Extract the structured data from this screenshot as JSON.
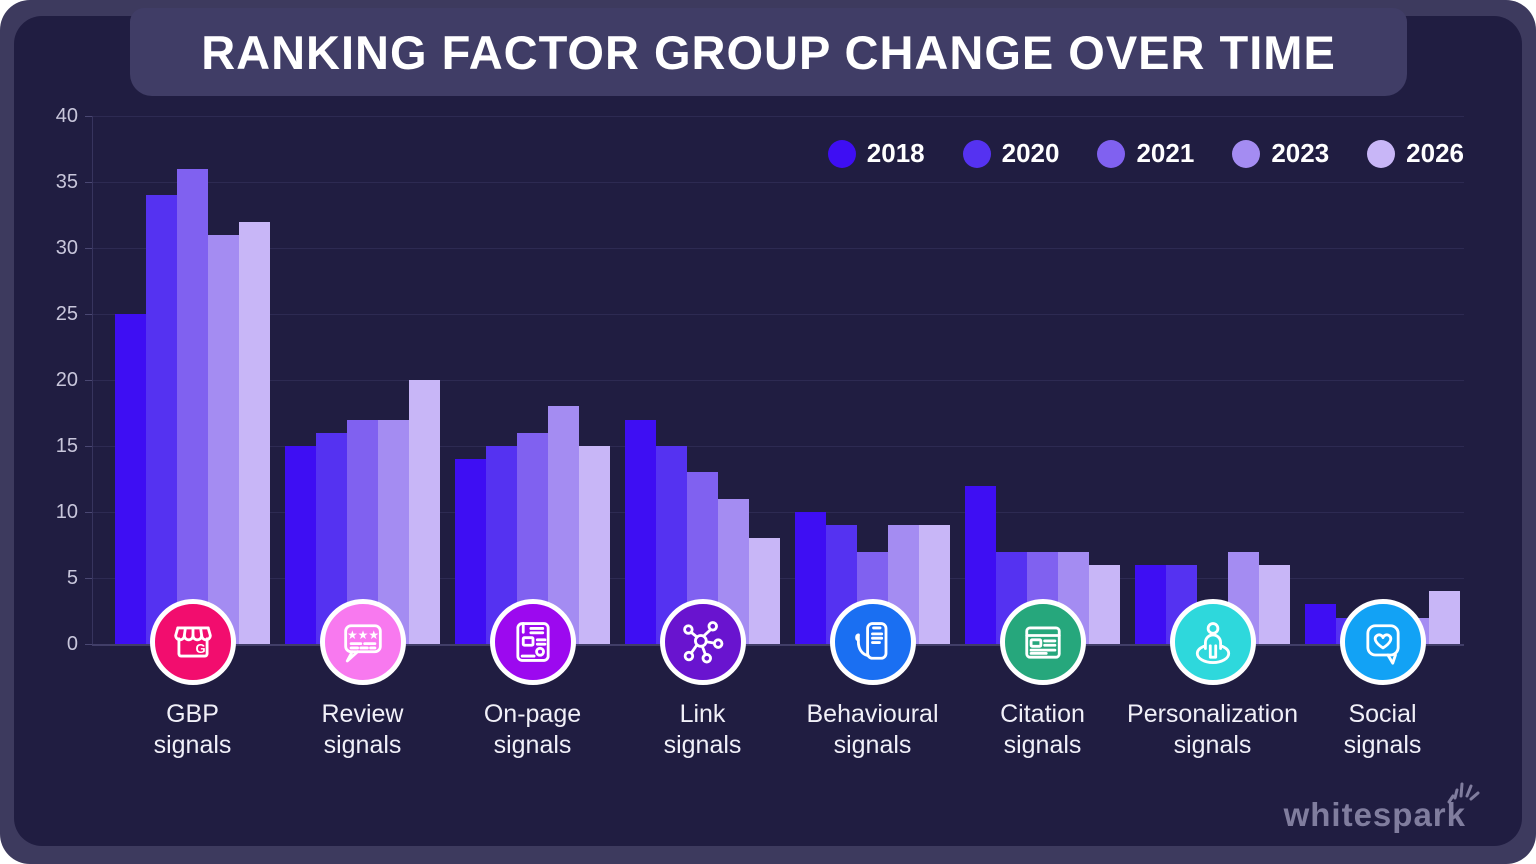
{
  "title": "RANKING FACTOR GROUP CHANGE OVER TIME",
  "brand": {
    "logo_text": "whitespark",
    "logo_color": "#807d9e",
    "spark_icon": "spark-burst-icon"
  },
  "colors": {
    "frame_rim": "#3d3a5e",
    "card_background": "#201d41",
    "banner_background": "#403d66",
    "gridline": "#2d2a52",
    "axis_label": "#c8c6db",
    "category_label": "#f1f0f8"
  },
  "chart_data": {
    "type": "bar",
    "title": "RANKING FACTOR GROUP CHANGE OVER TIME",
    "categories": [
      "GBP signals",
      "Review signals",
      "On-page signals",
      "Link signals",
      "Behavioural signals",
      "Citation signals",
      "Personalization signals",
      "Social signals"
    ],
    "category_lines": [
      [
        "GBP",
        "signals"
      ],
      [
        "Review",
        "signals"
      ],
      [
        "On-page",
        "signals"
      ],
      [
        "Link",
        "signals"
      ],
      [
        "Behavioural",
        "signals"
      ],
      [
        "Citation",
        "signals"
      ],
      [
        "Personalization",
        "signals"
      ],
      [
        "Social",
        "signals"
      ]
    ],
    "series": [
      {
        "name": "2018",
        "color": "#3e0ef3",
        "values": [
          25,
          15,
          14,
          17,
          10,
          12,
          6,
          3
        ]
      },
      {
        "name": "2020",
        "color": "#5532f1",
        "values": [
          34,
          16,
          15,
          15,
          9,
          7,
          6,
          2
        ]
      },
      {
        "name": "2021",
        "color": "#8061f0",
        "values": [
          36,
          17,
          16,
          13,
          7,
          7,
          3,
          2
        ]
      },
      {
        "name": "2023",
        "color": "#a48cf2",
        "values": [
          31,
          17,
          18,
          11,
          9,
          7,
          7,
          2
        ]
      },
      {
        "name": "2026",
        "color": "#c8b6f7",
        "values": [
          32,
          20,
          15,
          8,
          9,
          6,
          6,
          4
        ]
      }
    ],
    "ylim": [
      0,
      40
    ],
    "yticks": [
      0,
      5,
      10,
      15,
      20,
      25,
      30,
      35,
      40
    ],
    "grid": true,
    "legend_position": "top-right",
    "icons": [
      {
        "name": "gbp-storefront-icon",
        "color": "#f20d6e"
      },
      {
        "name": "review-stars-bubble-icon",
        "color": "#f879ef"
      },
      {
        "name": "on-page-document-icon",
        "color": "#9c09ef"
      },
      {
        "name": "link-network-icon",
        "color": "#6914cf"
      },
      {
        "name": "behavioural-hand-phone-icon",
        "color": "#1a6ff2"
      },
      {
        "name": "citation-listing-icon",
        "color": "#26a77c"
      },
      {
        "name": "personalization-person-icon",
        "color": "#2ed8dc"
      },
      {
        "name": "social-heart-bubble-icon",
        "color": "#12a2f5"
      }
    ]
  }
}
